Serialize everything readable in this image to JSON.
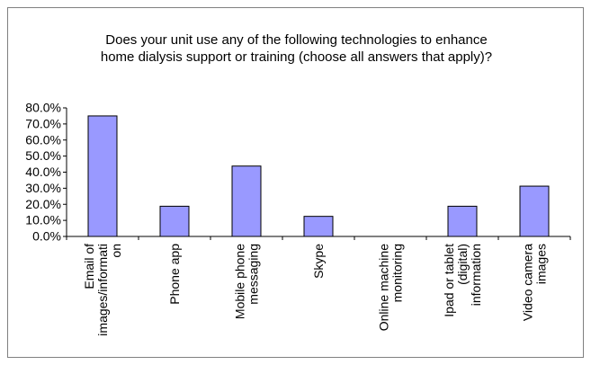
{
  "chart_data": {
    "type": "bar",
    "title_lines": [
      "Does your unit use any of the following technologies to enhance",
      "home dialysis support or training (choose all answers that apply)?"
    ],
    "categories": [
      [
        "Email of",
        "images/informati",
        "on"
      ],
      [
        "Phone app"
      ],
      [
        "Mobile phone",
        "messaging"
      ],
      [
        "Skype"
      ],
      [
        "Online machine",
        "monitoring"
      ],
      [
        "Ipad or tablet",
        "(digital)",
        "information"
      ],
      [
        "Video camera",
        "images"
      ]
    ],
    "values": [
      75.0,
      18.8,
      43.8,
      12.5,
      0.0,
      18.8,
      31.3
    ],
    "ylim": [
      0,
      80
    ],
    "yticks": [
      "0.0%",
      "10.0%",
      "20.0%",
      "30.0%",
      "40.0%",
      "50.0%",
      "60.0%",
      "70.0%",
      "80.0%"
    ],
    "xlabel": "",
    "ylabel": "",
    "grid": false,
    "legend": "none",
    "colors": {
      "bar_fill": "#9999ff",
      "bar_stroke": "#000000",
      "axis": "#000000",
      "frame_border": "#808080"
    }
  }
}
